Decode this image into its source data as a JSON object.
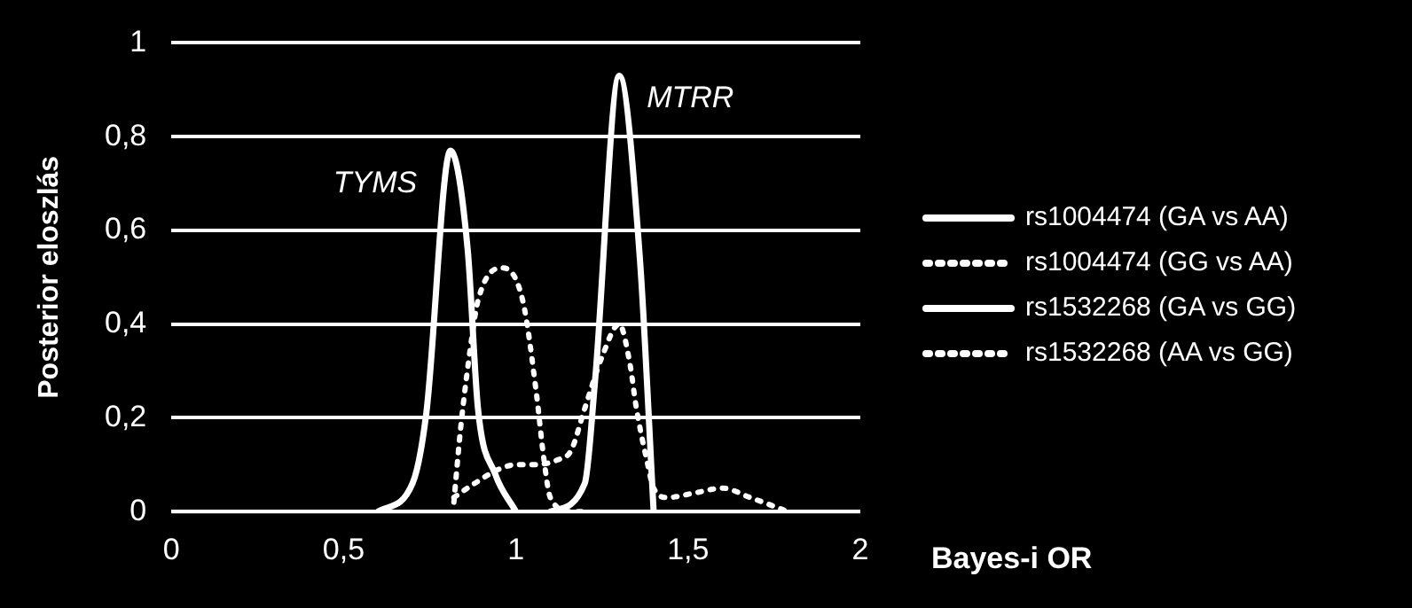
{
  "chart_data": {
    "type": "line",
    "xlabel": "Bayes-i OR",
    "ylabel": "Posterior eloszlás",
    "xlim": [
      0,
      2
    ],
    "xticks": [
      0,
      {
        "value": 0.5,
        "label": "0,5"
      },
      1,
      {
        "value": 1.5,
        "label": "1,5"
      },
      2
    ],
    "ylim": [
      0,
      1
    ],
    "yticks": [
      0,
      {
        "value": 0.2,
        "label": "0,2"
      },
      {
        "value": 0.4,
        "label": "0,4"
      },
      {
        "value": 0.6,
        "label": "0,6"
      },
      {
        "value": 0.8,
        "label": "0,8"
      },
      1
    ],
    "grid": "y",
    "legend": "right",
    "marker": "none",
    "annotations": [
      "TYMS",
      "MTRR"
    ],
    "series": [
      {
        "name": "rs1004474 (GA vs AA)",
        "color": "#ffffff",
        "line_style": "solid",
        "x": [
          0.6,
          0.7,
          0.74,
          0.81,
          0.86,
          0.89,
          0.94,
          1.0
        ],
        "values": [
          0,
          0.06,
          0.21,
          0.77,
          0.56,
          0.22,
          0.08,
          0
        ]
      },
      {
        "name": "rs1004474 (GG vs AA)",
        "color": "#ffffff",
        "line_style": "dotted",
        "x": [
          0.82,
          0.84,
          0.87,
          0.89,
          0.96,
          1.02,
          1.06,
          1.08,
          1.1,
          1.16,
          1.2
        ],
        "values": [
          0.02,
          0.18,
          0.36,
          0.45,
          0.52,
          0.45,
          0.25,
          0.12,
          0.03,
          0,
          0
        ]
      },
      {
        "name": "rs1532268 (GA vs GG)",
        "color": "#ffffff",
        "line_style": "solid",
        "x": [
          1.1,
          1.2,
          1.23,
          1.3,
          1.36,
          1.4
        ],
        "values": [
          0,
          0.06,
          0.28,
          0.93,
          0.54,
          0
        ]
      },
      {
        "name": "rs1532268 (AA vs GG)",
        "color": "#ffffff",
        "line_style": "dotted",
        "x": [
          0.82,
          0.88,
          0.95,
          1.0,
          1.05,
          1.12,
          1.16,
          1.2,
          1.25,
          1.3,
          1.33,
          1.35,
          1.38,
          1.4,
          1.44,
          1.52,
          1.6,
          1.68,
          1.79
        ],
        "values": [
          0.03,
          0.06,
          0.09,
          0.1,
          0.1,
          0.11,
          0.13,
          0.22,
          0.33,
          0.4,
          0.32,
          0.22,
          0.11,
          0.05,
          0.03,
          0.04,
          0.05,
          0.03,
          0
        ]
      }
    ]
  }
}
